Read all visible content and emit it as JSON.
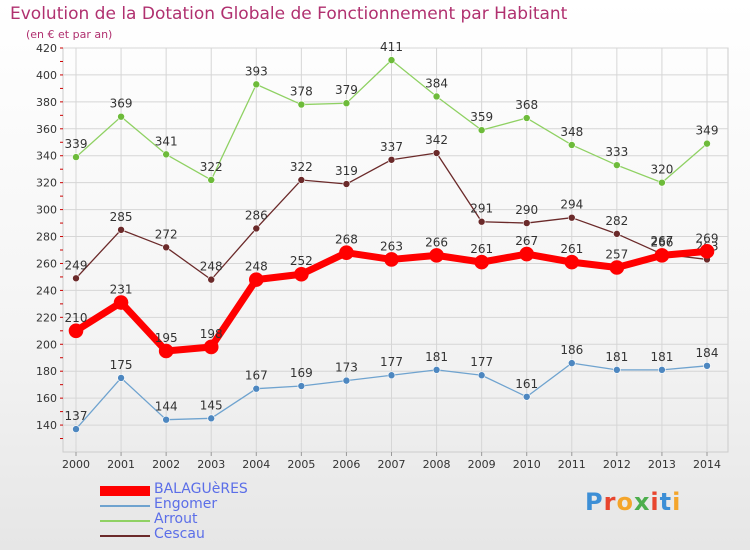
{
  "title": "Evolution de la Dotation Globale de Fonctionnement par Habitant",
  "subtitle": "(en € et par an)",
  "colors": {
    "BALAGUèRES": "#ff0000",
    "Engomer": "#6fa3cf",
    "Arrout": "#8fd163",
    "Cescau": "#6b2a2a",
    "title": "#b0306f"
  },
  "logo": {
    "text": "Proxiti",
    "colors": [
      "#3d8fd6",
      "#e8452e",
      "#f4a52b",
      "#4cae4c",
      "#e8452e",
      "#3d8fd6",
      "#f4a52b"
    ]
  },
  "chart_data": {
    "type": "line",
    "title": "Evolution de la Dotation Globale de Fonctionnement par Habitant",
    "ylabel": "(en € et par an)",
    "xlabel": "",
    "x": [
      "2000",
      "2001",
      "2002",
      "2003",
      "2004",
      "2005",
      "2006",
      "2007",
      "2008",
      "2009",
      "2010",
      "2011",
      "2012",
      "2013",
      "2014"
    ],
    "ylim": [
      120,
      420
    ],
    "yticks": [
      140,
      160,
      180,
      200,
      220,
      240,
      260,
      280,
      300,
      320,
      340,
      360,
      380,
      400,
      420
    ],
    "grid": true,
    "legend_position": "bottom-left",
    "series": [
      {
        "name": "Arrout",
        "values": [
          339,
          369,
          341,
          322,
          393,
          378,
          379,
          411,
          384,
          359,
          368,
          348,
          333,
          320,
          349
        ]
      },
      {
        "name": "Cescau",
        "values": [
          249,
          285,
          272,
          248,
          286,
          322,
          319,
          337,
          342,
          291,
          290,
          294,
          282,
          267,
          263
        ]
      },
      {
        "name": "Engomer",
        "values": [
          137,
          175,
          144,
          145,
          167,
          169,
          173,
          177,
          181,
          177,
          161,
          186,
          181,
          181,
          184
        ]
      },
      {
        "name": "BALAGUèRES",
        "values": [
          210,
          231,
          195,
          198,
          248,
          252,
          268,
          263,
          266,
          261,
          267,
          261,
          257,
          266,
          269
        ]
      }
    ],
    "legend": [
      "BALAGUèRES",
      "Engomer",
      "Arrout",
      "Cescau"
    ]
  }
}
